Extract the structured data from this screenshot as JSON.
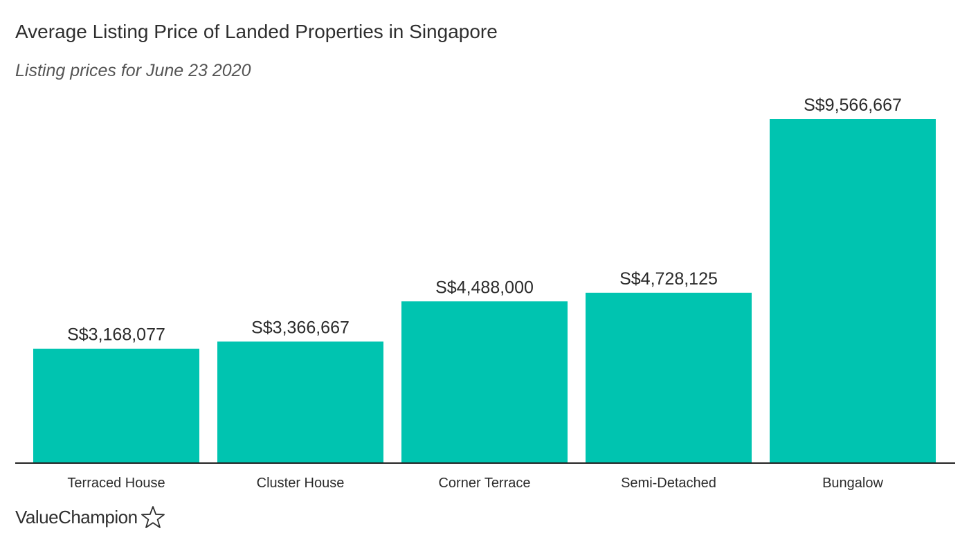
{
  "chart_data": {
    "type": "bar",
    "title": "Average Listing Price of Landed Properties in Singapore",
    "subtitle": "Listing prices for June 23 2020",
    "categories": [
      "Terraced House",
      "Cluster House",
      "Corner Terrace",
      "Semi-Detached",
      "Bungalow"
    ],
    "values": [
      3168077,
      3366667,
      4488000,
      4728125,
      9566667
    ],
    "data_labels": [
      "S$3,168,077",
      "S$3,366,667",
      "S$4,488,000",
      "S$4,728,125",
      "S$9,566,667"
    ],
    "xlabel": "",
    "ylabel": "",
    "grid": false,
    "legend": "none",
    "bar_color": "#00c4b0",
    "axis_color": "#222222"
  },
  "brand": {
    "logo_text": "ValueChampion",
    "logo_icon": "star-outline-icon"
  }
}
